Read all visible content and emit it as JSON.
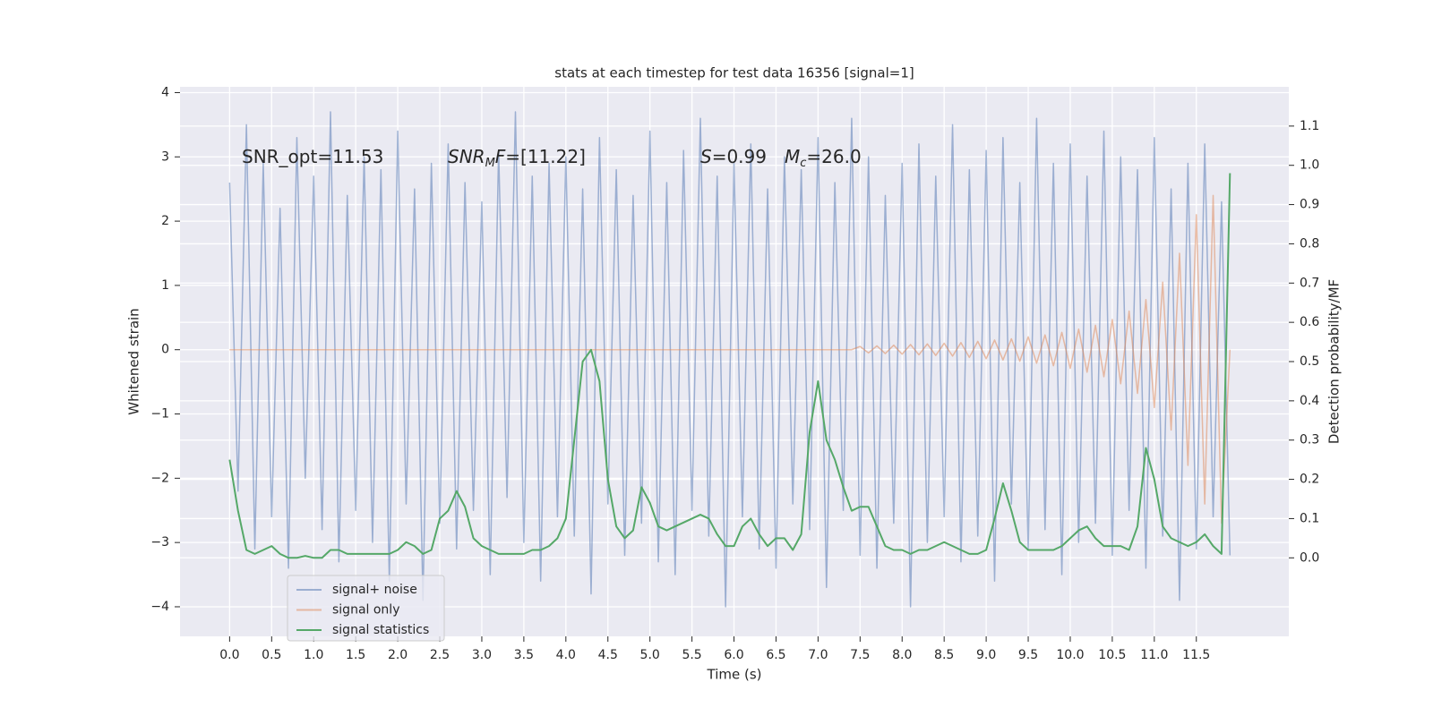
{
  "chart_data": {
    "type": "line",
    "title": "stats at each timestep for test data 16356 [signal=1]",
    "xlabel": "Time (s)",
    "ylabel": "Whitened strain",
    "y2label": "Detection probability/MF",
    "grid": true,
    "legend": "lower left",
    "xlim": [
      -0.59,
      12.6
    ],
    "ylim": [
      -4.46,
      4.09
    ],
    "y2lim": [
      -0.2,
      1.2
    ],
    "xticks": [
      {
        "value": 0,
        "label": "0.0"
      },
      {
        "value": 0.5,
        "label": "0.5"
      },
      {
        "value": 1,
        "label": "1.0"
      },
      {
        "value": 1.5,
        "label": "1.5"
      },
      {
        "value": 2,
        "label": "2.0"
      },
      {
        "value": 2.5,
        "label": "2.5"
      },
      {
        "value": 3,
        "label": "3.0"
      },
      {
        "value": 3.5,
        "label": "3.5"
      },
      {
        "value": 4,
        "label": "4.0"
      },
      {
        "value": 4.5,
        "label": "4.5"
      },
      {
        "value": 5,
        "label": "5.0"
      },
      {
        "value": 5.5,
        "label": "5.5"
      },
      {
        "value": 6,
        "label": "6.0"
      },
      {
        "value": 6.5,
        "label": "6.5"
      },
      {
        "value": 7,
        "label": "7.0"
      },
      {
        "value": 7.5,
        "label": "7.5"
      },
      {
        "value": 8,
        "label": "8.0"
      },
      {
        "value": 8.5,
        "label": "8.5"
      },
      {
        "value": 9,
        "label": "9.0"
      },
      {
        "value": 9.5,
        "label": "9.5"
      },
      {
        "value": 10,
        "label": "10.0"
      },
      {
        "value": 10.5,
        "label": "10.5"
      },
      {
        "value": 11,
        "label": "11.0"
      },
      {
        "value": 11.5,
        "label": "11.5"
      }
    ],
    "yticks": [
      {
        "value": -4,
        "label": "−4"
      },
      {
        "value": -3,
        "label": "−3"
      },
      {
        "value": -2,
        "label": "−2"
      },
      {
        "value": -1,
        "label": "−1"
      },
      0,
      1,
      2,
      3,
      4
    ],
    "y2ticks": [
      {
        "value": 0,
        "label": "0.0"
      },
      {
        "value": 0.1,
        "label": "0.1"
      },
      {
        "value": 0.2,
        "label": "0.2"
      },
      {
        "value": 0.3,
        "label": "0.3"
      },
      {
        "value": 0.4,
        "label": "0.4"
      },
      {
        "value": 0.5,
        "label": "0.5"
      },
      {
        "value": 0.6,
        "label": "0.6"
      },
      {
        "value": 0.7,
        "label": "0.7"
      },
      {
        "value": 0.8,
        "label": "0.8"
      },
      {
        "value": 0.9,
        "label": "0.9"
      },
      {
        "value": 1,
        "label": "1.0"
      },
      {
        "value": 1.1,
        "label": "1.1"
      }
    ],
    "annotations": [
      {
        "parts": [
          {
            "text": "SNR_opt=11.53"
          }
        ]
      },
      {
        "parts": [
          {
            "text": "SNR",
            "italic": true
          },
          {
            "text": "M",
            "italic": true,
            "sub": true
          },
          {
            "text": "F",
            "italic": true
          },
          {
            "text": "=[11.22]"
          }
        ]
      },
      {
        "parts": [
          {
            "text": "S",
            "italic": true
          },
          {
            "text": "=0.99"
          }
        ]
      },
      {
        "parts": [
          {
            "text": "M",
            "italic": true
          },
          {
            "text": "c",
            "italic": true,
            "sub": true
          },
          {
            "text": "=26.0"
          }
        ]
      }
    ],
    "x": [
      0.0,
      0.1,
      0.2,
      0.3,
      0.4,
      0.5,
      0.6,
      0.7,
      0.8,
      0.9,
      1.0,
      1.1,
      1.2,
      1.3,
      1.4,
      1.5,
      1.6,
      1.7,
      1.8,
      1.9,
      2.0,
      2.1,
      2.2,
      2.3,
      2.4,
      2.5,
      2.6,
      2.7,
      2.8,
      2.9,
      3.0,
      3.1,
      3.2,
      3.3,
      3.4,
      3.5,
      3.6,
      3.7,
      3.8,
      3.9,
      4.0,
      4.1,
      4.2,
      4.3,
      4.4,
      4.5,
      4.6,
      4.7,
      4.8,
      4.9,
      5.0,
      5.1,
      5.2,
      5.3,
      5.4,
      5.5,
      5.6,
      5.7,
      5.8,
      5.9,
      6.0,
      6.1,
      6.2,
      6.3,
      6.4,
      6.5,
      6.6,
      6.7,
      6.8,
      6.9,
      7.0,
      7.1,
      7.2,
      7.3,
      7.4,
      7.5,
      7.6,
      7.7,
      7.8,
      7.9,
      8.0,
      8.1,
      8.2,
      8.3,
      8.4,
      8.5,
      8.6,
      8.7,
      8.8,
      8.9,
      9.0,
      9.1,
      9.2,
      9.3,
      9.4,
      9.5,
      9.6,
      9.7,
      9.8,
      9.9,
      10.0,
      10.1,
      10.2,
      10.3,
      10.4,
      10.5,
      10.6,
      10.7,
      10.8,
      10.9,
      11.0,
      11.1,
      11.2,
      11.3,
      11.4,
      11.5,
      11.6,
      11.7,
      11.8,
      11.9
    ],
    "series": [
      {
        "name": "signal+ noise",
        "color": "#4c72b0",
        "alpha": 0.5,
        "axis": "y",
        "values": [
          2.6,
          -2.2,
          3.5,
          -3.1,
          2.9,
          -2.6,
          2.2,
          -3.4,
          3.3,
          -2.0,
          2.7,
          -2.8,
          3.7,
          -3.3,
          2.4,
          -2.5,
          3.0,
          -3.0,
          2.8,
          -3.6,
          3.4,
          -2.4,
          2.5,
          -3.9,
          2.9,
          -2.7,
          3.2,
          -3.1,
          2.6,
          -2.5,
          2.3,
          -3.5,
          3.1,
          -2.3,
          3.7,
          -3.0,
          2.7,
          -3.6,
          2.9,
          -2.6,
          3.0,
          -2.9,
          2.5,
          -3.8,
          3.3,
          -2.4,
          2.8,
          -3.2,
          2.4,
          -2.7,
          3.4,
          -3.3,
          2.6,
          -3.5,
          3.1,
          -2.5,
          3.6,
          -2.9,
          2.7,
          -4.0,
          2.9,
          -2.6,
          3.2,
          -3.1,
          2.5,
          -3.4,
          3.0,
          -2.4,
          2.8,
          -2.8,
          3.3,
          -3.7,
          2.6,
          -2.5,
          3.6,
          -3.2,
          3.0,
          -3.4,
          2.4,
          -2.7,
          2.9,
          -4.0,
          3.2,
          -3.0,
          2.7,
          -2.6,
          3.5,
          -3.3,
          2.8,
          -2.9,
          3.1,
          -3.6,
          3.3,
          -2.4,
          2.6,
          -3.1,
          3.6,
          -2.8,
          2.9,
          -3.5,
          3.2,
          -3.0,
          2.7,
          -2.7,
          3.4,
          -3.2,
          3.0,
          -2.5,
          2.8,
          -3.4,
          3.3,
          -2.9,
          2.5,
          -3.9,
          2.9,
          -3.1,
          3.2,
          -2.6,
          2.3,
          -3.2
        ]
      },
      {
        "name": "signal only",
        "color": "#dd8452",
        "alpha": 0.5,
        "axis": "y",
        "values": [
          0,
          0,
          0,
          0,
          0,
          0,
          0,
          0,
          0,
          0,
          0,
          0,
          0,
          0,
          0,
          0,
          0,
          0,
          0,
          0,
          0,
          0,
          0,
          0,
          0,
          0,
          0,
          0,
          0,
          0,
          0,
          0,
          0,
          0,
          0,
          0,
          0,
          0,
          0,
          0,
          0,
          0,
          0,
          0,
          0,
          0,
          0,
          0,
          0,
          0,
          0,
          0,
          0,
          0,
          0,
          0,
          0,
          0,
          0,
          0,
          0,
          0,
          0,
          0,
          0,
          0,
          0,
          0,
          0,
          0,
          0,
          0,
          0,
          0,
          0,
          0.05,
          -0.05,
          0.06,
          -0.06,
          0.07,
          -0.07,
          0.08,
          -0.08,
          0.09,
          -0.09,
          0.1,
          -0.1,
          0.11,
          -0.12,
          0.13,
          -0.14,
          0.15,
          -0.16,
          0.17,
          -0.18,
          0.2,
          -0.21,
          0.23,
          -0.25,
          0.27,
          -0.29,
          0.32,
          -0.35,
          0.38,
          -0.42,
          0.47,
          -0.53,
          0.6,
          -0.68,
          0.78,
          -0.9,
          1.05,
          -1.25,
          1.5,
          -1.8,
          2.1,
          -2.4,
          2.4,
          -2.7,
          0
        ]
      },
      {
        "name": "signal statistics",
        "color": "#55a868",
        "alpha": 1,
        "axis": "y2",
        "values": [
          0.25,
          0.12,
          0.02,
          0.01,
          0.02,
          0.03,
          0.01,
          0.0,
          0.0,
          0.005,
          0.0,
          0.0,
          0.02,
          0.02,
          0.01,
          0.01,
          0.01,
          0.01,
          0.01,
          0.01,
          0.02,
          0.04,
          0.03,
          0.01,
          0.02,
          0.1,
          0.12,
          0.17,
          0.13,
          0.05,
          0.03,
          0.02,
          0.01,
          0.01,
          0.01,
          0.01,
          0.02,
          0.02,
          0.03,
          0.05,
          0.1,
          0.3,
          0.5,
          0.53,
          0.45,
          0.2,
          0.08,
          0.05,
          0.07,
          0.18,
          0.14,
          0.08,
          0.07,
          0.08,
          0.09,
          0.1,
          0.11,
          0.1,
          0.06,
          0.03,
          0.03,
          0.08,
          0.1,
          0.06,
          0.03,
          0.05,
          0.05,
          0.02,
          0.06,
          0.32,
          0.45,
          0.3,
          0.25,
          0.18,
          0.12,
          0.13,
          0.13,
          0.08,
          0.03,
          0.02,
          0.02,
          0.01,
          0.02,
          0.02,
          0.03,
          0.04,
          0.03,
          0.02,
          0.01,
          0.01,
          0.02,
          0.1,
          0.19,
          0.12,
          0.04,
          0.02,
          0.02,
          0.02,
          0.02,
          0.03,
          0.05,
          0.07,
          0.08,
          0.05,
          0.03,
          0.03,
          0.03,
          0.02,
          0.08,
          0.28,
          0.2,
          0.08,
          0.05,
          0.04,
          0.03,
          0.04,
          0.06,
          0.03,
          0.01,
          0.98
        ]
      }
    ]
  }
}
